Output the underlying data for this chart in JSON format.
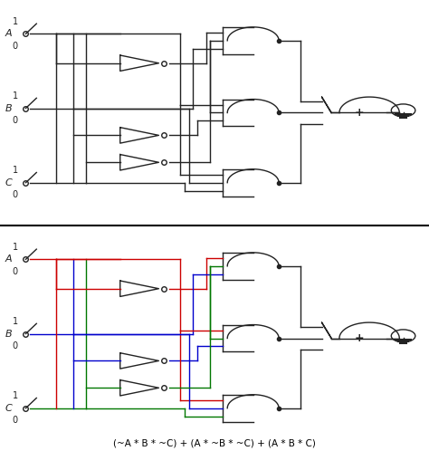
{
  "bg_color": "#ffffff",
  "line_color": "#222222",
  "formula": "(~A * B * ~C) + (A * ~B * ~C) + (A * B * C)",
  "colors": {
    "A": "#cc0000",
    "B": "#0000cc",
    "C": "#007700"
  },
  "figsize": [
    4.74,
    4.98
  ],
  "dpi": 100
}
